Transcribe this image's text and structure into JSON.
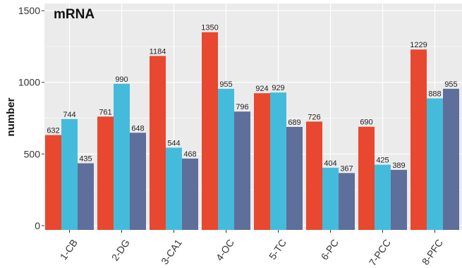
{
  "chart_data": {
    "type": "bar",
    "title": "mRNA",
    "xlabel": "",
    "ylabel": "number",
    "ylim": [
      -30,
      1550
    ],
    "yticks": [
      0,
      500,
      1000,
      1500
    ],
    "grid": true,
    "categories": [
      "1-CB",
      "2-DG",
      "3-CA1",
      "4-OC",
      "5-TC",
      "6-PC",
      "7-PCC",
      "8-PFC"
    ],
    "series": [
      {
        "values": [
          632,
          761,
          1184,
          1350,
          924,
          726,
          690,
          1229
        ],
        "color": "#e8482f"
      },
      {
        "values": [
          744,
          990,
          544,
          955,
          929,
          404,
          425,
          888
        ],
        "color": "#45bbdb"
      },
      {
        "values": [
          435,
          648,
          468,
          796,
          689,
          367,
          389,
          955
        ],
        "color": "#5e6f9b"
      }
    ]
  },
  "colors": {
    "panel_background": "#ebebeb",
    "grid_major": "#ffffff"
  }
}
